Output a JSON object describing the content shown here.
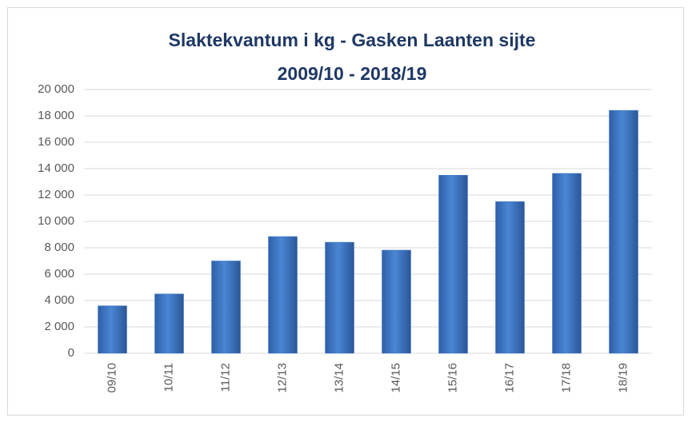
{
  "chart_data": {
    "type": "bar",
    "title": "Slaktekvantum i kg - Gasken Laanten sijte",
    "subtitle": "2009/10 - 2018/19",
    "categories": [
      "09/10",
      "10/11",
      "11/12",
      "12/13",
      "13/14",
      "14/15",
      "15/16",
      "16/17",
      "17/18",
      "18/19"
    ],
    "values": [
      3600,
      4500,
      7000,
      8850,
      8420,
      7820,
      13500,
      11500,
      13640,
      18420
    ],
    "color": "#3f77c4",
    "ylim": [
      0,
      20000
    ],
    "yticks": [
      0,
      {
        "value": 2000,
        "label": "2 000"
      },
      {
        "value": 4000,
        "label": "4 000"
      },
      {
        "value": 6000,
        "label": "6 000"
      },
      {
        "value": 8000,
        "label": "8 000"
      },
      {
        "value": 10000,
        "label": "10 000"
      },
      {
        "value": 12000,
        "label": "12 000"
      },
      {
        "value": 14000,
        "label": "14 000"
      },
      {
        "value": 16000,
        "label": "16 000"
      },
      {
        "value": 18000,
        "label": "18 000"
      },
      {
        "value": 20000,
        "label": "20 000"
      }
    ],
    "grid": true
  }
}
